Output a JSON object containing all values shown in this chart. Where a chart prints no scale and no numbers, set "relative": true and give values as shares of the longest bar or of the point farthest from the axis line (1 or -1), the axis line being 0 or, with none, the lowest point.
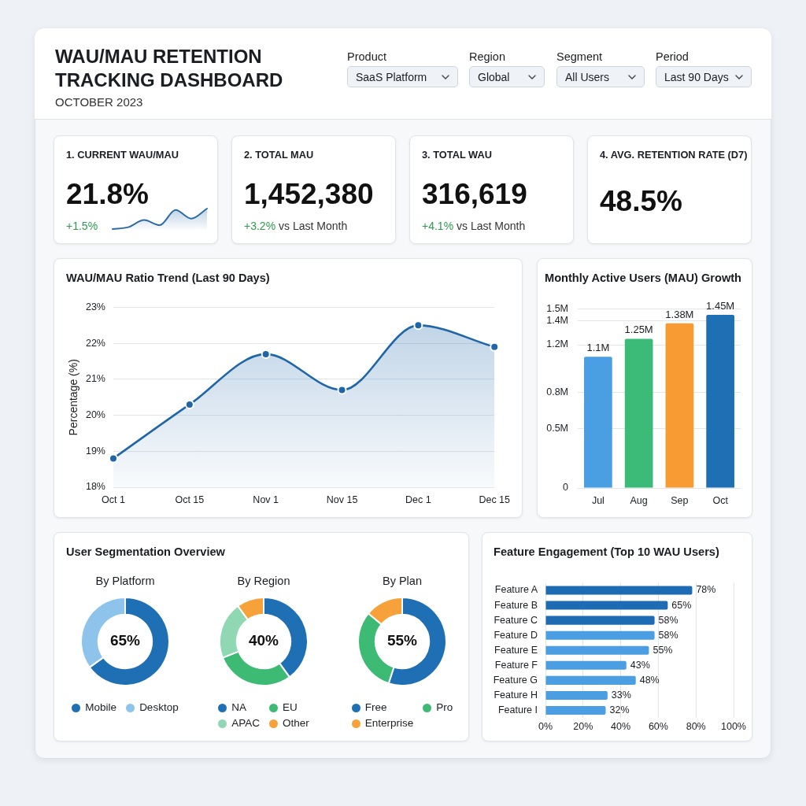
{
  "chart_data": [
    {
      "type": "other",
      "title": "WAU/MAU RETENTION TRACKING DASHBOARD",
      "subtitle": "OCTOBER 2023",
      "annotations": [
        "Product",
        "SaaS Platform",
        "Region",
        "Global",
        "Segment",
        "All Users",
        "Period",
        "Last 90 Days"
      ]
    },
    {
      "type": "other",
      "title": "1. CURRENT WAU/MAU",
      "annotations": [
        "21.8%",
        "+1.5%"
      ]
    },
    {
      "type": "area",
      "relative": true,
      "categories": [
        null,
        null,
        null,
        null,
        null,
        null,
        null
      ],
      "values": [
        0,
        0.09,
        0.44,
        0.19,
        0.93,
        0.51,
        1
      ],
      "color": "#2a6aa8"
    },
    {
      "type": "other",
      "title": "2. TOTAL MAU",
      "annotations": [
        "1,452,380",
        "+3.2%",
        "vs Last Month"
      ]
    },
    {
      "type": "other",
      "title": "3. TOTAL WAU",
      "annotations": [
        "316,619",
        "+4.1%",
        "vs Last Month"
      ]
    },
    {
      "type": "other",
      "title": "4. AVG. RETENTION RATE (D7)",
      "annotations": [
        "48.5%"
      ]
    },
    {
      "type": "area",
      "title": "WAU/MAU Ratio Trend (Last 90 Days)",
      "ylabel": "Percentage (%)",
      "categories": [
        "Oct 1",
        "Oct 15",
        "Nov 1",
        "Nov 15",
        "Dec 1",
        "Dec 15"
      ],
      "values": [
        18.8,
        20.3,
        21.7,
        20.7,
        22.5,
        21.9
      ],
      "color": "#1f66a8",
      "ylim": [
        18,
        23
      ],
      "yticks": [
        {
          "value": 18,
          "label": "18%"
        },
        {
          "value": 19,
          "label": "19%"
        },
        {
          "value": 20,
          "label": "20%"
        },
        {
          "value": 21,
          "label": "21%"
        },
        {
          "value": 22,
          "label": "22%"
        },
        {
          "value": 23,
          "label": "23%"
        }
      ],
      "grid": "y",
      "marker": "circle"
    },
    {
      "type": "bar",
      "title": "Monthly Active Users (MAU) Growth",
      "categories": [
        "Jul",
        "Aug",
        "Sep",
        "Oct"
      ],
      "values": [
        1.1,
        1.25,
        1.38,
        1.45
      ],
      "colors": [
        "#4a9fe3",
        "#3cba78",
        "#f99b33",
        "#1f6fb5"
      ],
      "ylim": [
        0,
        1.5
      ],
      "yticks": [
        0,
        {
          "value": 0.5,
          "label": "0.5M"
        },
        {
          "value": 0.8,
          "label": "0.8M"
        },
        {
          "value": 1.2,
          "label": "1.2M"
        },
        {
          "value": 1.4,
          "label": "1.4M"
        },
        {
          "value": 1.5,
          "label": "1.5M"
        }
      ],
      "grid": "y",
      "value_labels": [
        "1.1M",
        "1.25M",
        "1.38M",
        "1.45M"
      ]
    },
    {
      "type": "other",
      "title": "User Segmentation Overview"
    },
    {
      "type": "donut",
      "title": "By Platform",
      "categories": [
        "Mobile",
        "Desktop"
      ],
      "values": [
        65,
        35
      ],
      "colors": [
        "#1f6fb5",
        "#8ec4ec"
      ],
      "legend": "bottom",
      "annotations": [
        "65%"
      ]
    },
    {
      "type": "donut",
      "title": "By Region",
      "categories": [
        "NA",
        "EU",
        "APAC",
        "Other"
      ],
      "values": [
        40,
        29,
        21,
        10
      ],
      "colors": [
        "#1f6fb5",
        "#3dba74",
        "#90d7b3",
        "#f7a13a"
      ],
      "legend": "bottom",
      "annotations": [
        "40%"
      ]
    },
    {
      "type": "donut",
      "title": "By Plan",
      "categories": [
        "Free",
        "Pro",
        "Enterprise"
      ],
      "values": [
        55,
        31,
        14
      ],
      "colors": [
        "#1f6fb5",
        "#3dba74",
        "#f7a13a"
      ],
      "legend": "bottom",
      "annotations": [
        "55%"
      ]
    },
    {
      "type": "bar",
      "orientation": "horizontal",
      "title": "Feature Engagement (Top 10 WAU Users)",
      "categories": [
        "Feature A",
        "Feature B",
        "Feature C",
        "Feature D",
        "Feature E",
        "Feature F",
        "Feature G",
        "Feature H",
        "Feature I"
      ],
      "values": [
        78,
        65,
        58,
        58,
        55,
        43,
        48,
        33,
        32
      ],
      "colors": [
        "#1d6bb3",
        "#1d6bb3",
        "#1d6bb3",
        "#4a9ee1",
        "#4a9ee1",
        "#4a9ee1",
        "#4a9ee1",
        "#4a9ee1",
        "#4a9ee1"
      ],
      "xlim": [
        0,
        100
      ],
      "xticks": [
        {
          "value": 0,
          "label": "0%"
        },
        {
          "value": 20,
          "label": "20%"
        },
        {
          "value": 40,
          "label": "40%"
        },
        {
          "value": 60,
          "label": "60%"
        },
        {
          "value": 80,
          "label": "80%"
        },
        {
          "value": 100,
          "label": "100%"
        }
      ],
      "grid": "x",
      "value_labels": [
        "78%",
        "65%",
        "58%",
        "58%",
        "55%",
        "43%",
        "48%",
        "33%",
        "32%"
      ]
    }
  ]
}
